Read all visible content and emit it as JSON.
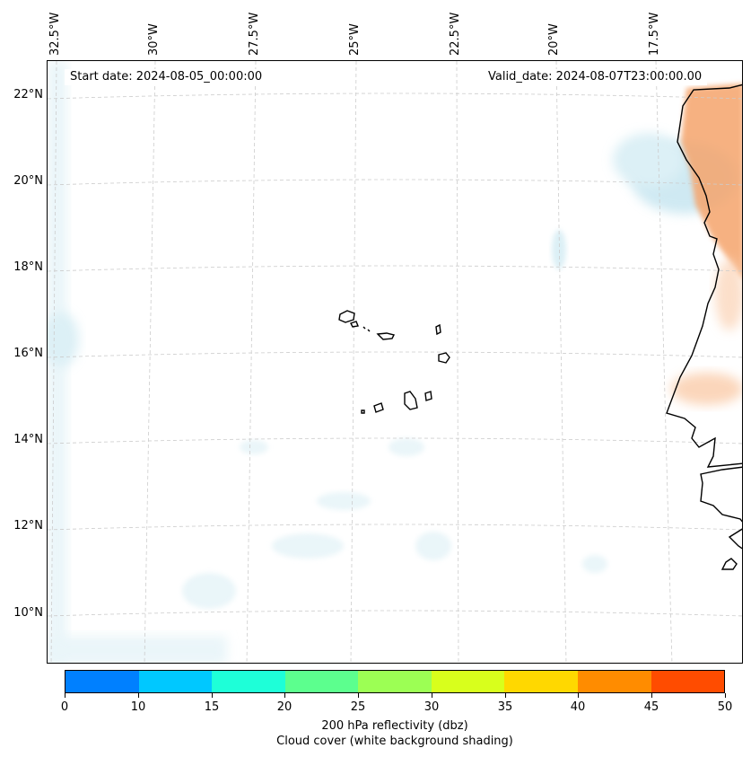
{
  "map": {
    "start_date_label": "Start date: 2024-08-05_00:00:00",
    "valid_date_label": "Valid_date: 2024-08-07T23:00:00.00",
    "longitude_labels": [
      "32.5°W",
      "30°W",
      "27.5°W",
      "25°W",
      "22.5°W",
      "20°W",
      "17.5°W"
    ],
    "latitude_labels": [
      "22°N",
      "20°N",
      "18°N",
      "16°N",
      "14°N",
      "12°N",
      "10°N"
    ],
    "colors": {
      "coastline": "#000000",
      "gridline": "#cccccc",
      "cloud_shade": "#bfe3ee",
      "high_reflectivity_shade": "#f2a06a"
    }
  },
  "colorbar": {
    "ticks": [
      "0",
      "10",
      "15",
      "20",
      "25",
      "30",
      "35",
      "40",
      "45",
      "50"
    ],
    "colors": [
      "#0080ff",
      "#00c8ff",
      "#1effd8",
      "#5cff8e",
      "#9cff54",
      "#d8ff1c",
      "#ffd800",
      "#ff8c00",
      "#ff4c00"
    ],
    "label_line1": "200 hPa reflectivity (dbz)",
    "label_line2": "Cloud cover (white background shading)"
  }
}
